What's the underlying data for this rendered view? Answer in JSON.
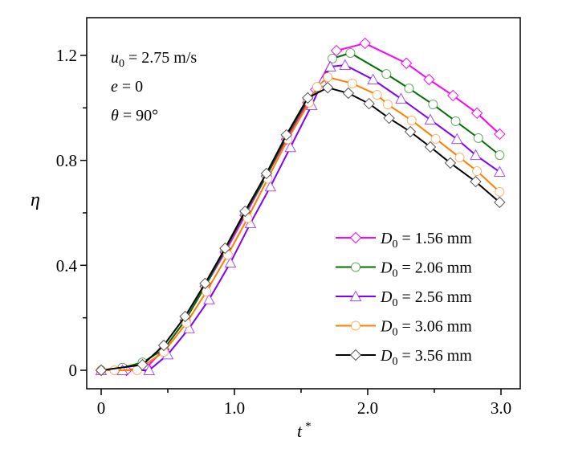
{
  "chart_data": {
    "type": "line",
    "xlabel": "t",
    "xlabel_sup": "*",
    "ylabel": "η",
    "xlim": [
      -0.1,
      3.15
    ],
    "ylim": [
      -0.07,
      1.33
    ],
    "xticks": [
      0,
      1.0,
      2.0,
      3.0
    ],
    "xtick_labels": [
      "0",
      "1.0",
      "2.0",
      "3.0"
    ],
    "yticks": [
      0,
      0.4,
      0.8,
      1.2
    ],
    "ytick_labels": [
      "0",
      "0.4",
      "0.8",
      "1.2"
    ],
    "grid": false,
    "legend_position": "right",
    "annotations": [
      "u0 = 2.75 m/s",
      "e = 0",
      "θ = 90°"
    ],
    "annotation_parts": [
      {
        "var": "u",
        "sub": "0",
        "rest": " = 2.75 m/s"
      },
      {
        "var": "e",
        "sub": "",
        "rest": " = 0"
      },
      {
        "var": "θ",
        "sub": "",
        "rest": " = 90°"
      }
    ],
    "series": [
      {
        "name": "D0 = 1.56 mm",
        "var": "D",
        "sub": "0",
        "rest": " = 1.56 mm",
        "color": "#ff00ff",
        "marker": "diamond",
        "x": [
          0,
          0.19,
          0.34,
          0.47,
          0.63,
          0.78,
          0.93,
          1.08,
          1.24,
          1.39,
          1.55,
          1.61,
          1.765,
          1.98,
          2.29,
          2.46,
          2.64,
          2.82,
          2.99
        ],
        "y": [
          0,
          0.0,
          0.01,
          0.08,
          0.19,
          0.32,
          0.45,
          0.59,
          0.74,
          0.88,
          1.02,
          1.07,
          1.218,
          1.246,
          1.17,
          1.108,
          1.047,
          0.98,
          0.9
        ]
      },
      {
        "name": "D0 = 2.06 mm",
        "var": "D",
        "sub": "0",
        "rest": " = 2.06 mm",
        "color": "#007000",
        "marker": "circle",
        "x": [
          0,
          0.16,
          0.31,
          0.47,
          0.63,
          0.78,
          0.93,
          1.08,
          1.24,
          1.39,
          1.55,
          1.64,
          1.735,
          1.87,
          2.14,
          2.31,
          2.49,
          2.66,
          2.83,
          2.99
        ],
        "y": [
          0,
          0.01,
          0.03,
          0.08,
          0.19,
          0.32,
          0.46,
          0.6,
          0.74,
          0.89,
          1.03,
          1.08,
          1.188,
          1.209,
          1.129,
          1.074,
          1.013,
          0.949,
          0.885,
          0.82
        ]
      },
      {
        "name": "D0 = 2.56 mm",
        "var": "D",
        "sub": "0",
        "rest": " = 2.56 mm",
        "color": "#7f00ff",
        "marker": "triangle",
        "x": [
          0,
          0.16,
          0.36,
          0.5,
          0.66,
          0.81,
          0.97,
          1.12,
          1.27,
          1.42,
          1.58,
          1.66,
          1.72,
          1.83,
          2.04,
          2.25,
          2.47,
          2.67,
          2.81,
          2.99
        ],
        "y": [
          0,
          0.0,
          0.0,
          0.06,
          0.16,
          0.27,
          0.41,
          0.56,
          0.7,
          0.85,
          1.01,
          1.1,
          1.157,
          1.163,
          1.108,
          1.035,
          0.955,
          0.881,
          0.82,
          0.756
        ]
      },
      {
        "name": "D0 = 3.06 mm",
        "var": "D",
        "sub": "0",
        "rest": " = 3.06 mm",
        "color": "#ff7f00",
        "marker": "circle",
        "x": [
          0,
          0.1,
          0.27,
          0.47,
          0.64,
          0.79,
          0.95,
          1.1,
          1.25,
          1.4,
          1.56,
          1.62,
          1.7,
          1.885,
          2.07,
          2.15,
          2.33,
          2.51,
          2.69,
          2.82,
          2.99
        ],
        "y": [
          0,
          0,
          0,
          0.07,
          0.18,
          0.3,
          0.44,
          0.58,
          0.73,
          0.88,
          1.02,
          1.08,
          1.117,
          1.093,
          1.05,
          1.013,
          0.952,
          0.882,
          0.811,
          0.759,
          0.68
        ]
      },
      {
        "name": "D0 = 3.56 mm",
        "var": "D",
        "sub": "0",
        "rest": " = 3.56 mm",
        "color": "#000000",
        "marker": "diamond",
        "x": [
          0,
          0.31,
          0.47,
          0.63,
          0.78,
          0.93,
          1.08,
          1.24,
          1.39,
          1.55,
          1.7,
          1.855,
          2.01,
          2.16,
          2.32,
          2.47,
          2.62,
          2.81,
          2.99
        ],
        "y": [
          0,
          0.021,
          0.095,
          0.205,
          0.331,
          0.465,
          0.606,
          0.75,
          0.897,
          1.038,
          1.077,
          1.056,
          1.016,
          0.961,
          0.909,
          0.851,
          0.79,
          0.719,
          0.64
        ]
      }
    ]
  }
}
